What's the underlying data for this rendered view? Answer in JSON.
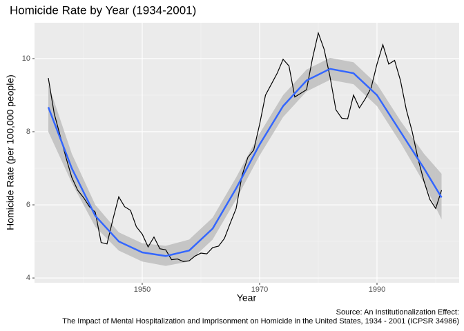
{
  "chart_data": {
    "type": "line",
    "title": "Homicide Rate by Year (1934-2001)",
    "x_label": "Year",
    "y_label": "Homicide Rate (per 100,000 people)",
    "caption": [
      "Source: An Institutionalization Effect:",
      "The Impact of Mental Hospitalization and Imprisonment on Homicide in the United States, 1934 - 2001 (ICPSR 34986)"
    ],
    "xlim": [
      1931.65,
      2004
    ],
    "ylim": [
      3.87,
      10.98
    ],
    "xticks": [
      1950,
      1970,
      1990
    ],
    "yticks": [
      4,
      6,
      8,
      10
    ],
    "xminor": [
      1940,
      1960,
      1980,
      2000
    ],
    "yminor": [
      5,
      7,
      9
    ],
    "grid": true,
    "x": [
      1934,
      1935,
      1936,
      1937,
      1938,
      1939,
      1940,
      1941,
      1942,
      1943,
      1944,
      1945,
      1946,
      1947,
      1948,
      1949,
      1950,
      1951,
      1952,
      1953,
      1954,
      1955,
      1956,
      1957,
      1958,
      1959,
      1960,
      1961,
      1962,
      1963,
      1964,
      1965,
      1966,
      1967,
      1968,
      1969,
      1970,
      1971,
      1972,
      1973,
      1974,
      1975,
      1976,
      1977,
      1978,
      1979,
      1980,
      1981,
      1982,
      1983,
      1984,
      1985,
      1986,
      1987,
      1988,
      1989,
      1990,
      1991,
      1992,
      1993,
      1994,
      1995,
      1996,
      1997,
      1998,
      1999,
      2000,
      2001
    ],
    "series": [
      {
        "color": "#000000",
        "values": [
          9.47,
          8.5,
          7.9,
          7.3,
          6.75,
          6.4,
          6.2,
          5.95,
          5.8,
          4.97,
          4.93,
          5.6,
          6.22,
          5.95,
          5.85,
          5.4,
          5.2,
          4.85,
          5.12,
          4.8,
          4.77,
          4.5,
          4.52,
          4.45,
          4.47,
          4.6,
          4.68,
          4.66,
          4.83,
          4.87,
          5.08,
          5.5,
          5.9,
          6.8,
          7.3,
          7.5,
          8.2,
          9.0,
          9.3,
          9.6,
          9.98,
          9.8,
          8.95,
          9.05,
          9.15,
          10.0,
          10.7,
          10.25,
          9.5,
          8.6,
          8.37,
          8.35,
          9.0,
          8.65,
          8.9,
          9.2,
          9.85,
          10.38,
          9.85,
          9.95,
          9.4,
          8.6,
          8.0,
          7.25,
          6.65,
          6.15,
          5.9,
          6.4
        ]
      }
    ],
    "smooth": {
      "color": "#3366ff",
      "band_color": "#bebebe",
      "x": [
        1934,
        1938,
        1942,
        1946,
        1950,
        1954,
        1958,
        1962,
        1966,
        1970,
        1974,
        1978,
        1982,
        1986,
        1990,
        1994,
        1998,
        2001
      ],
      "values": [
        8.67,
        7.0,
        5.7,
        5.0,
        4.7,
        4.6,
        4.75,
        5.35,
        6.45,
        7.65,
        8.7,
        9.4,
        9.72,
        9.6,
        9.0,
        8.0,
        7.0,
        6.2
      ],
      "lower": [
        8.0,
        6.6,
        5.4,
        4.75,
        4.45,
        4.33,
        4.45,
        5.05,
        6.15,
        7.35,
        8.4,
        9.1,
        9.42,
        9.3,
        8.7,
        7.7,
        6.6,
        5.6
      ],
      "upper": [
        9.3,
        7.4,
        6.0,
        5.25,
        4.95,
        4.88,
        5.05,
        5.65,
        6.75,
        7.95,
        9.0,
        9.7,
        10.02,
        9.9,
        9.3,
        8.3,
        7.4,
        6.85
      ]
    }
  }
}
